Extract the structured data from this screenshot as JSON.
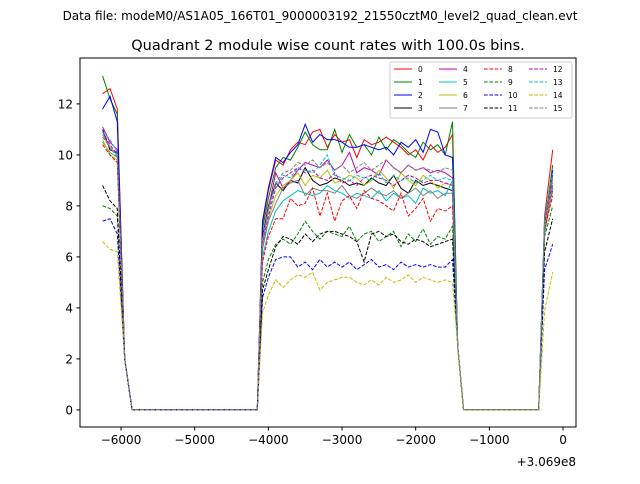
{
  "chart_data": {
    "type": "line",
    "suptitle": "Data file: modeM0/AS1A05_166T01_9000003192_21550cztM0_level2_quad_clean.evt",
    "title": "Quadrant 2 module wise count rates with 100.0s bins.",
    "xlabel": "",
    "ylabel": "",
    "x_offset_label": "+3.069e8",
    "xlim": [
      -6557,
      176
    ],
    "ylim": [
      -0.67,
      13.8
    ],
    "xticks": [
      -6000,
      -5000,
      -4000,
      -3000,
      -2000,
      -1000,
      0
    ],
    "xtick_labels": [
      "−6000",
      "−5000",
      "−4000",
      "−3000",
      "−2000",
      "−1000",
      "0"
    ],
    "yticks": [
      0,
      2,
      4,
      6,
      8,
      10,
      12
    ],
    "ytick_labels": [
      "0",
      "2",
      "4",
      "6",
      "8",
      "10",
      "12"
    ],
    "grid": false,
    "legend_position": "top-right",
    "x": [
      -6250,
      -6150,
      -6050,
      -5950,
      -5850,
      -4150,
      -4080,
      -4000,
      -3900,
      -3800,
      -3700,
      -3600,
      -3500,
      -3400,
      -3300,
      -3200,
      -3100,
      -3000,
      -2900,
      -2800,
      -2700,
      -2600,
      -2500,
      -2400,
      -2300,
      -2200,
      -2100,
      -2000,
      -1900,
      -1800,
      -1700,
      -1600,
      -1500,
      -1430,
      -1350,
      -330,
      -250,
      -140
    ],
    "series": [
      {
        "name": "0",
        "color": "#ff0000",
        "dash": false,
        "start": [
          12.4,
          12.6,
          11.8
        ],
        "plateau": [
          8.6,
          9.8,
          9.6,
          10.2,
          10.5,
          10.4,
          10.9,
          11.0,
          10.3,
          10.8,
          10.5,
          10.6,
          9.9,
          10.6,
          10.4,
          10.5,
          10.7,
          10.5,
          10.3,
          10.0,
          10.2,
          9.8,
          10.4,
          10.1,
          10.3,
          10.8
        ],
        "tail": [
          7.6,
          10.2
        ]
      },
      {
        "name": "1",
        "color": "#008000",
        "dash": false,
        "start": [
          13.1,
          12.2,
          11.6
        ],
        "plateau": [
          8.3,
          9.5,
          9.9,
          9.8,
          10.3,
          10.9,
          10.4,
          10.2,
          10.2,
          11.0,
          10.1,
          10.8,
          10.3,
          10.4,
          10.0,
          10.7,
          10.2,
          10.6,
          10.4,
          10.1,
          9.9,
          10.5,
          10.2,
          10.4,
          10.0,
          11.3
        ],
        "tail": [
          7.3,
          9.6
        ]
      },
      {
        "name": "2",
        "color": "#0000ff",
        "dash": false,
        "start": [
          11.8,
          12.3,
          11.3
        ],
        "plateau": [
          8.7,
          9.9,
          9.7,
          10.1,
          10.4,
          11.2,
          10.5,
          10.8,
          10.6,
          10.6,
          10.5,
          10.3,
          10.3,
          10.4,
          10.3,
          10.2,
          10.3,
          10.0,
          10.5,
          10.3,
          10.6,
          10.1,
          11.0,
          10.9,
          10.0,
          9.9
        ],
        "tail": [
          7.0,
          9.4
        ]
      },
      {
        "name": "3",
        "color": "#000000",
        "dash": false,
        "start": [
          11.0,
          10.2,
          10.1
        ],
        "plateau": [
          8.0,
          8.9,
          8.6,
          9.0,
          8.9,
          9.5,
          9.0,
          8.8,
          8.9,
          9.1,
          9.0,
          8.8,
          8.9,
          8.8,
          9.1,
          8.9,
          8.8,
          9.2,
          8.7,
          8.5,
          9.0,
          8.8,
          8.9,
          8.8,
          8.7,
          8.6
        ],
        "tail": [
          7.4,
          8.6
        ]
      },
      {
        "name": "4",
        "color": "#bf00bf",
        "dash": false,
        "start": [
          11.1,
          10.5,
          10.2
        ],
        "plateau": [
          7.9,
          9.3,
          8.7,
          9.0,
          9.4,
          9.7,
          9.6,
          9.5,
          9.8,
          9.4,
          9.6,
          10.1,
          9.3,
          9.5,
          9.4,
          9.2,
          9.8,
          9.5,
          9.3,
          9.6,
          9.4,
          9.5,
          9.3,
          9.4,
          9.3,
          9.1
        ],
        "tail": [
          7.2,
          9.2
        ]
      },
      {
        "name": "5",
        "color": "#00bfbf",
        "dash": false,
        "start": [
          10.5,
          10.1,
          9.9
        ],
        "plateau": [
          7.0,
          7.8,
          8.2,
          8.4,
          8.6,
          8.5,
          8.4,
          8.5,
          8.8,
          8.6,
          8.5,
          8.3,
          8.5,
          8.4,
          8.3,
          8.6,
          8.2,
          8.5,
          8.3,
          8.4,
          8.1,
          8.7,
          8.5,
          8.6,
          8.4,
          9.0
        ],
        "tail": [
          6.9,
          8.8
        ]
      },
      {
        "name": "6",
        "color": "#bfbf00",
        "dash": false,
        "start": [
          10.6,
          10.0,
          9.8
        ],
        "plateau": [
          7.5,
          8.4,
          8.8,
          9.0,
          9.3,
          8.8,
          9.2,
          9.1,
          9.4,
          8.9,
          9.0,
          9.2,
          9.1,
          8.8,
          9.0,
          9.4,
          9.1,
          8.7,
          9.3,
          9.0,
          8.8,
          9.2,
          9.0,
          8.7,
          8.9,
          8.8
        ],
        "tail": [
          7.1,
          9.0
        ]
      },
      {
        "name": "7",
        "color": "#808080",
        "dash": false,
        "start": [
          10.8,
          10.3,
          10.0
        ],
        "plateau": [
          7.4,
          8.1,
          8.7,
          8.9,
          9.0,
          8.4,
          8.7,
          8.6,
          8.6,
          8.5,
          8.8,
          8.4,
          8.3,
          8.5,
          8.7,
          8.5,
          8.4,
          8.6,
          8.3,
          8.5,
          8.7,
          8.4,
          8.6,
          8.3,
          8.5,
          8.5
        ],
        "tail": [
          7.0,
          8.7
        ]
      },
      {
        "name": "8",
        "color": "#ff0000",
        "dash": true,
        "start": [
          10.4,
          10.0,
          9.7
        ],
        "plateau": [
          6.8,
          7.5,
          7.5,
          8.3,
          8.0,
          8.1,
          8.7,
          7.6,
          8.5,
          7.4,
          8.2,
          8.4,
          7.9,
          8.6,
          8.3,
          8.2,
          8.0,
          7.8,
          8.5,
          7.6,
          7.9,
          8.3,
          7.4,
          7.9,
          7.8,
          8.0
        ],
        "tail": [
          7.1,
          8.4
        ]
      },
      {
        "name": "9",
        "color": "#008000",
        "dash": true,
        "start": [
          8.0,
          7.9,
          7.6
        ],
        "plateau": [
          5.9,
          6.5,
          6.7,
          6.5,
          6.9,
          7.4,
          7.0,
          6.7,
          7.0,
          6.9,
          6.8,
          7.2,
          6.6,
          6.9,
          7.0,
          6.6,
          6.8,
          7.0,
          6.4,
          6.9,
          6.6,
          7.1,
          6.5,
          6.8,
          6.7,
          7.2
        ],
        "tail": [
          6.8,
          8.0
        ]
      },
      {
        "name": "10",
        "color": "#0000ff",
        "dash": true,
        "start": [
          7.4,
          7.5,
          6.9
        ],
        "plateau": [
          5.2,
          5.9,
          6.0,
          6.0,
          5.6,
          5.8,
          5.5,
          5.9,
          5.6,
          5.8,
          5.6,
          5.8,
          5.5,
          5.7,
          5.9,
          5.6,
          5.7,
          5.5,
          5.8,
          5.6,
          5.7,
          5.6,
          5.7,
          5.6,
          5.6,
          5.9
        ],
        "tail": [
          5.5,
          6.5
        ]
      },
      {
        "name": "11",
        "color": "#000000",
        "dash": true,
        "start": [
          8.8,
          8.2,
          7.9
        ],
        "plateau": [
          5.5,
          6.4,
          6.8,
          6.7,
          6.5,
          6.9,
          6.6,
          6.9,
          7.0,
          7.0,
          6.9,
          6.8,
          6.6,
          5.8,
          6.9,
          7.0,
          6.8,
          6.9,
          6.6,
          6.5,
          6.7,
          6.6,
          6.4,
          6.5,
          6.6,
          6.7
        ],
        "tail": [
          6.2,
          7.5
        ]
      },
      {
        "name": "12",
        "color": "#bf00bf",
        "dash": true,
        "start": [
          10.9,
          10.4,
          10.0
        ],
        "plateau": [
          7.6,
          8.7,
          9.1,
          9.3,
          9.5,
          9.3,
          9.4,
          9.1,
          9.0,
          9.3,
          8.9,
          9.0,
          8.8,
          9.1,
          9.2,
          9.1,
          9.0,
          8.8,
          9.0,
          9.2,
          9.1,
          8.9,
          9.0,
          9.0,
          8.9,
          8.8
        ],
        "tail": [
          7.3,
          8.9
        ]
      },
      {
        "name": "13",
        "color": "#00bfbf",
        "dash": true,
        "start": [
          10.9,
          10.6,
          10.1
        ],
        "plateau": [
          7.8,
          8.8,
          9.2,
          9.1,
          9.5,
          9.4,
          9.3,
          9.6,
          10.0,
          9.2,
          9.1,
          9.0,
          9.2,
          9.1,
          9.0,
          9.3,
          8.9,
          9.2,
          9.0,
          9.1,
          8.9,
          9.0,
          9.2,
          9.0,
          9.1,
          9.0
        ],
        "tail": [
          7.5,
          9.3
        ]
      },
      {
        "name": "14",
        "color": "#bfbf00",
        "dash": true,
        "start": [
          6.6,
          6.3,
          6.2
        ],
        "plateau": [
          4.5,
          5.1,
          4.8,
          5.1,
          5.3,
          5.2,
          5.4,
          4.7,
          5.0,
          5.1,
          5.2,
          5.2,
          5.0,
          4.9,
          5.1,
          4.9,
          5.2,
          5.0,
          5.1,
          5.3,
          5.0,
          5.2,
          5.1,
          5.0,
          5.1,
          5.0
        ],
        "tail": [
          3.9,
          5.4
        ]
      },
      {
        "name": "15",
        "color": "#808080",
        "dash": true,
        "start": [
          10.7,
          10.3,
          9.9
        ],
        "plateau": [
          7.9,
          8.9,
          9.3,
          9.4,
          9.7,
          9.6,
          9.8,
          9.5,
          9.7,
          9.4,
          9.6,
          9.3,
          9.5,
          9.7,
          9.4,
          9.6,
          9.8,
          9.5,
          9.3,
          9.6,
          9.4,
          9.5,
          9.4,
          9.3,
          9.5,
          9.4
        ],
        "tail": [
          7.3,
          9.1
        ]
      }
    ],
    "transition_values": {
      "fall": [
        2.0,
        0
      ],
      "zero_gap": 0,
      "rise_fraction": 0.85,
      "fall2": [
        2.5,
        0
      ],
      "zero_gap2": 0
    }
  }
}
